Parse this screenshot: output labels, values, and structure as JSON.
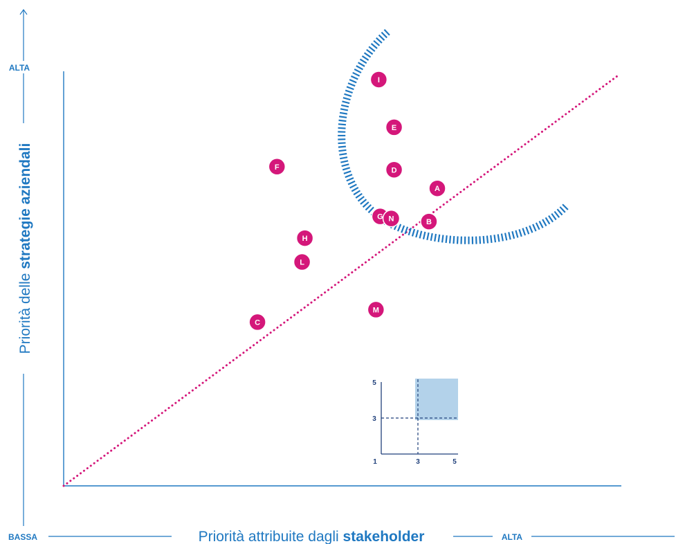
{
  "chart_data": {
    "type": "scatter",
    "xlabel_prefix": "Priorità attribuite dagli ",
    "xlabel_bold": "stakeholder",
    "ylabel_prefix": "Priorità delle ",
    "ylabel_bold": "strategie aziendali",
    "x_low_label": "BASSA",
    "x_high_label": "ALTA",
    "y_high_label": "ALTA",
    "xlim": [
      1,
      5
    ],
    "ylim": [
      1,
      5
    ],
    "points": [
      {
        "label": "I",
        "x": 3.26,
        "y": 4.92
      },
      {
        "label": "E",
        "x": 3.37,
        "y": 4.46
      },
      {
        "label": "F",
        "x": 2.53,
        "y": 4.08
      },
      {
        "label": "D",
        "x": 3.37,
        "y": 4.05
      },
      {
        "label": "A",
        "x": 3.68,
        "y": 3.87
      },
      {
        "label": "G",
        "x": 3.27,
        "y": 3.6
      },
      {
        "label": "N",
        "x": 3.35,
        "y": 3.58
      },
      {
        "label": "B",
        "x": 3.62,
        "y": 3.55
      },
      {
        "label": "H",
        "x": 2.73,
        "y": 3.39
      },
      {
        "label": "L",
        "x": 2.71,
        "y": 3.16
      },
      {
        "label": "M",
        "x": 3.24,
        "y": 2.7
      },
      {
        "label": "C",
        "x": 2.39,
        "y": 2.58
      }
    ],
    "threshold": {
      "x": 3,
      "y": 3
    },
    "diagonal": true,
    "colors": {
      "axis": "#1f78c1",
      "points": "#d4177a",
      "diagonal": "#d4177a",
      "arc": "#1f78c1",
      "inset_fill": "#b3d2ea"
    },
    "inset": {
      "x_ticks": [
        "1",
        "3",
        "5"
      ],
      "y_ticks": [
        "5",
        "3"
      ]
    }
  }
}
